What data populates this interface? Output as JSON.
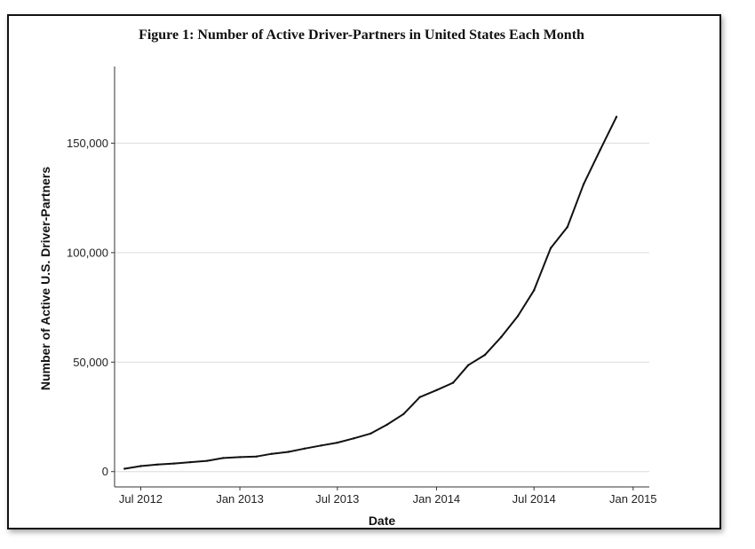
{
  "chart_data": {
    "type": "line",
    "title": "Figure 1: Number of Active Driver-Partners in United States Each Month",
    "xlabel": "Date",
    "ylabel": "Number of Active U.S. Driver-Partners",
    "ylim": [
      -7000,
      185000
    ],
    "xlim": [
      "2012-05-20",
      "2015-01-31"
    ],
    "grid": "horizontal",
    "y_ticks": [
      {
        "value": 0,
        "label": "0"
      },
      {
        "value": 50000,
        "label": "50,000"
      },
      {
        "value": 100000,
        "label": "100,000"
      },
      {
        "value": 150000,
        "label": "150,000"
      }
    ],
    "x_ticks": [
      {
        "value": "2012-07-01",
        "label": "Jul 2012"
      },
      {
        "value": "2013-01-01",
        "label": "Jan 2013"
      },
      {
        "value": "2013-07-01",
        "label": "Jul 2013"
      },
      {
        "value": "2014-01-01",
        "label": "Jan 2014"
      },
      {
        "value": "2014-07-01",
        "label": "Jul 2014"
      },
      {
        "value": "2015-01-01",
        "label": "Jan 2015"
      }
    ],
    "series": [
      {
        "color": "#111111",
        "x": [
          "2012-06-01",
          "2012-07-01",
          "2012-08-01",
          "2012-09-01",
          "2012-10-01",
          "2012-11-01",
          "2012-12-01",
          "2013-01-01",
          "2013-02-01",
          "2013-03-01",
          "2013-04-01",
          "2013-05-01",
          "2013-06-01",
          "2013-07-01",
          "2013-08-01",
          "2013-09-01",
          "2013-10-01",
          "2013-11-01",
          "2013-12-01",
          "2014-01-01",
          "2014-02-01",
          "2014-03-01",
          "2014-04-01",
          "2014-05-01",
          "2014-06-01",
          "2014-07-01",
          "2014-08-01",
          "2014-09-01",
          "2014-10-01",
          "2014-11-01",
          "2014-12-01"
        ],
        "values": [
          1300,
          2500,
          3200,
          3700,
          4300,
          4900,
          6200,
          6600,
          6900,
          8100,
          9000,
          10500,
          11900,
          13200,
          15200,
          17400,
          21400,
          26300,
          34000,
          37200,
          40600,
          48600,
          53300,
          61400,
          71000,
          82800,
          102100,
          111700,
          131200,
          147000,
          162000
        ]
      }
    ]
  }
}
